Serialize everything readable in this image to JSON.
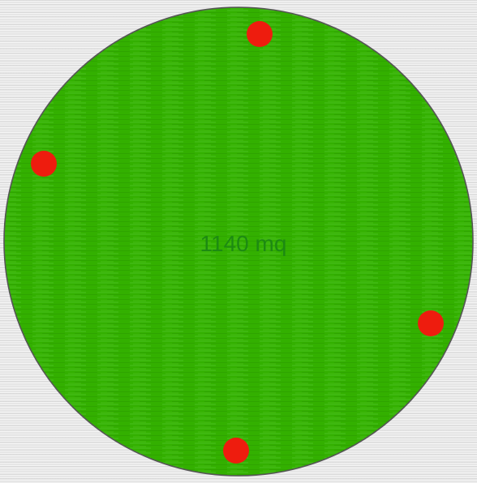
{
  "area": {
    "label": "1140 mq",
    "fill_color": "#33b000",
    "stroke_color": "#555555",
    "label_color": "#1d8a12"
  },
  "handles": {
    "color": "#ee1c0e",
    "count": 4
  }
}
